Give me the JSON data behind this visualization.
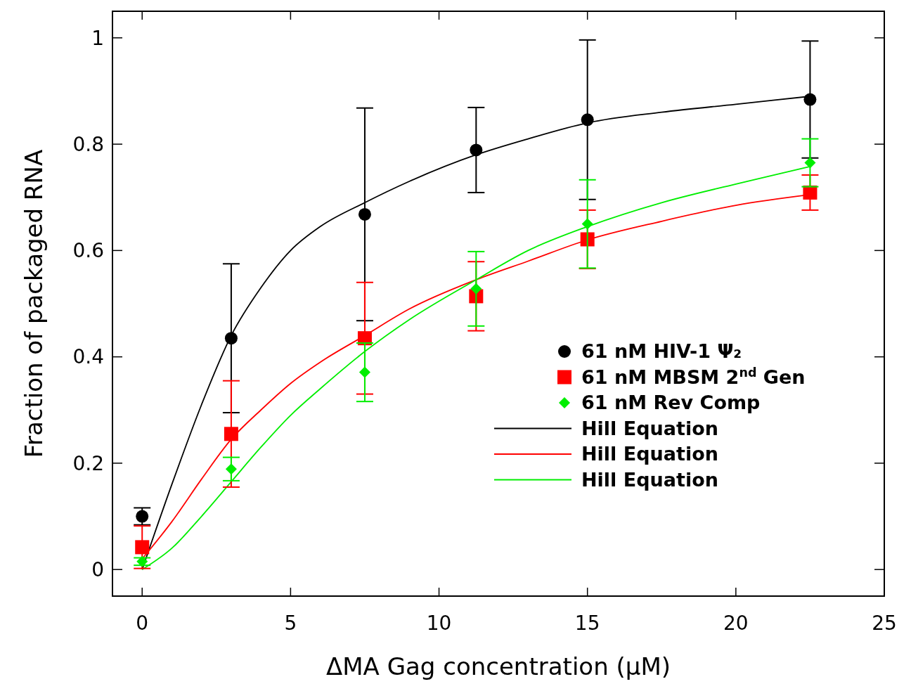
{
  "chart_data": {
    "type": "scatter",
    "xlabel": "ΔMA Gag concentration (μM)",
    "ylabel": "Fraction of packaged RNA",
    "xlim": [
      -1,
      25
    ],
    "xticks": [
      0,
      5,
      10,
      15,
      20,
      25
    ],
    "ylim": [
      -0.05,
      1.05
    ],
    "yticks": [
      0,
      0.2,
      0.4,
      0.6,
      0.8,
      1
    ],
    "grid": false,
    "legend": "right",
    "series": [
      {
        "name": "61 nM HIV-1 Ψ₂",
        "color": "#000000",
        "marker": "circle",
        "x": [
          0,
          3,
          7.5,
          11.25,
          15,
          22.5
        ],
        "values": [
          0.1,
          0.435,
          0.668,
          0.789,
          0.846,
          0.884
        ],
        "errors": [
          0.016,
          0.14,
          0.2,
          0.08,
          0.15,
          0.11
        ]
      },
      {
        "name": "61 nM MBSM 2$^{nd}$ Gen",
        "color": "#ff0000",
        "marker": "square",
        "x": [
          0,
          3,
          7.5,
          11.25,
          15,
          22.5
        ],
        "values": [
          0.042,
          0.255,
          0.435,
          0.514,
          0.621,
          0.709
        ],
        "errors": [
          0.04,
          0.1,
          0.105,
          0.065,
          0.055,
          0.033
        ]
      },
      {
        "name": "61 nM Rev Comp",
        "color": "#00ee00",
        "marker": "diamond",
        "x": [
          0,
          3,
          7.5,
          11.25,
          15,
          22.5
        ],
        "values": [
          0.015,
          0.189,
          0.371,
          0.528,
          0.65,
          0.765
        ],
        "errors": [
          0.007,
          0.022,
          0.055,
          0.07,
          0.083,
          0.045
        ]
      },
      {
        "name": "Hill Equation",
        "color": "#000000",
        "type": "line",
        "x": [
          0,
          1,
          2,
          3,
          4,
          5,
          6,
          7.5,
          9,
          11.25,
          13,
          15,
          17.5,
          20,
          22.5
        ],
        "values": [
          0,
          0.16,
          0.31,
          0.44,
          0.53,
          0.6,
          0.645,
          0.69,
          0.73,
          0.78,
          0.81,
          0.84,
          0.86,
          0.875,
          0.89
        ]
      },
      {
        "name": "Hill Equation",
        "color": "#ff0000",
        "type": "line",
        "x": [
          0,
          1,
          2,
          3,
          4,
          5,
          6,
          7.5,
          9,
          11.25,
          13,
          15,
          17.5,
          20,
          22.5
        ],
        "values": [
          0.02,
          0.09,
          0.17,
          0.245,
          0.3,
          0.35,
          0.39,
          0.44,
          0.49,
          0.545,
          0.58,
          0.62,
          0.655,
          0.685,
          0.705
        ]
      },
      {
        "name": "Hill Equation",
        "color": "#00ee00",
        "type": "line",
        "x": [
          0,
          1,
          2,
          3,
          4,
          5,
          6,
          7.5,
          9,
          11.25,
          13,
          15,
          17.5,
          20,
          22.5
        ],
        "values": [
          0,
          0.04,
          0.1,
          0.165,
          0.23,
          0.29,
          0.34,
          0.41,
          0.47,
          0.545,
          0.6,
          0.645,
          0.69,
          0.725,
          0.758
        ]
      }
    ]
  }
}
